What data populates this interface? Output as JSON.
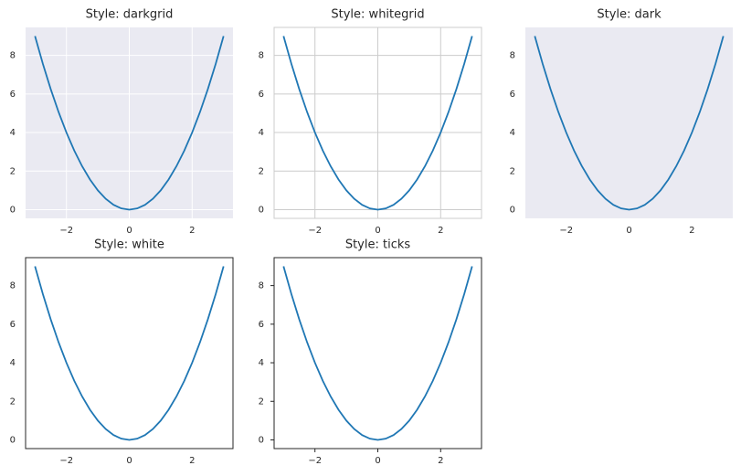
{
  "chart_data": [
    {
      "type": "line",
      "title": "Style: darkgrid",
      "x": [
        -3,
        -2.75,
        -2.5,
        -2.25,
        -2,
        -1.75,
        -1.5,
        -1.25,
        -1,
        -0.75,
        -0.5,
        -0.25,
        0,
        0.25,
        0.5,
        0.75,
        1,
        1.25,
        1.5,
        1.75,
        2,
        2.25,
        2.5,
        2.75,
        3
      ],
      "values": [
        9,
        7.5625,
        6.25,
        5.0625,
        4,
        3.0625,
        2.25,
        1.5625,
        1,
        0.5625,
        0.25,
        0.0625,
        0,
        0.0625,
        0.25,
        0.5625,
        1,
        1.5625,
        2.25,
        3.0625,
        4,
        5.0625,
        6.25,
        7.5625,
        9
      ],
      "color": "#1f77b4",
      "xlim": [
        -3.3,
        3.3
      ],
      "ylim": [
        -0.45,
        9.45
      ],
      "xticks": [
        {
          "value": -2,
          "label": "−2"
        },
        0,
        2
      ],
      "yticks": [
        0,
        2,
        4,
        6,
        8
      ],
      "background": "#eaeaf2",
      "grid": true,
      "grid_color": "#ffffff"
    },
    {
      "type": "line",
      "title": "Style: whitegrid",
      "x": [
        -3,
        -2.75,
        -2.5,
        -2.25,
        -2,
        -1.75,
        -1.5,
        -1.25,
        -1,
        -0.75,
        -0.5,
        -0.25,
        0,
        0.25,
        0.5,
        0.75,
        1,
        1.25,
        1.5,
        1.75,
        2,
        2.25,
        2.5,
        2.75,
        3
      ],
      "values": [
        9,
        7.5625,
        6.25,
        5.0625,
        4,
        3.0625,
        2.25,
        1.5625,
        1,
        0.5625,
        0.25,
        0.0625,
        0,
        0.0625,
        0.25,
        0.5625,
        1,
        1.5625,
        2.25,
        3.0625,
        4,
        5.0625,
        6.25,
        7.5625,
        9
      ],
      "color": "#1f77b4",
      "xlim": [
        -3.3,
        3.3
      ],
      "ylim": [
        -0.45,
        9.45
      ],
      "xticks": [
        {
          "value": -2,
          "label": "−2"
        },
        0,
        2
      ],
      "yticks": [
        0,
        2,
        4,
        6,
        8
      ],
      "background": "#ffffff",
      "grid": true,
      "grid_color": "#cccccc",
      "spine_color": "#cccccc"
    },
    {
      "type": "line",
      "title": "Style: dark",
      "x": [
        -3,
        -2.75,
        -2.5,
        -2.25,
        -2,
        -1.75,
        -1.5,
        -1.25,
        -1,
        -0.75,
        -0.5,
        -0.25,
        0,
        0.25,
        0.5,
        0.75,
        1,
        1.25,
        1.5,
        1.75,
        2,
        2.25,
        2.5,
        2.75,
        3
      ],
      "values": [
        9,
        7.5625,
        6.25,
        5.0625,
        4,
        3.0625,
        2.25,
        1.5625,
        1,
        0.5625,
        0.25,
        0.0625,
        0,
        0.0625,
        0.25,
        0.5625,
        1,
        1.5625,
        2.25,
        3.0625,
        4,
        5.0625,
        6.25,
        7.5625,
        9
      ],
      "color": "#1f77b4",
      "xlim": [
        -3.3,
        3.3
      ],
      "ylim": [
        -0.45,
        9.45
      ],
      "xticks": [
        {
          "value": -2,
          "label": "−2"
        },
        0,
        2
      ],
      "yticks": [
        0,
        2,
        4,
        6,
        8
      ],
      "background": "#eaeaf2",
      "grid": false
    },
    {
      "type": "line",
      "title": "Style: white",
      "x": [
        -3,
        -2.75,
        -2.5,
        -2.25,
        -2,
        -1.75,
        -1.5,
        -1.25,
        -1,
        -0.75,
        -0.5,
        -0.25,
        0,
        0.25,
        0.5,
        0.75,
        1,
        1.25,
        1.5,
        1.75,
        2,
        2.25,
        2.5,
        2.75,
        3
      ],
      "values": [
        9,
        7.5625,
        6.25,
        5.0625,
        4,
        3.0625,
        2.25,
        1.5625,
        1,
        0.5625,
        0.25,
        0.0625,
        0,
        0.0625,
        0.25,
        0.5625,
        1,
        1.5625,
        2.25,
        3.0625,
        4,
        5.0625,
        6.25,
        7.5625,
        9
      ],
      "color": "#1f77b4",
      "xlim": [
        -3.3,
        3.3
      ],
      "ylim": [
        -0.45,
        9.45
      ],
      "xticks": [
        {
          "value": -2,
          "label": "−2"
        },
        0,
        2
      ],
      "yticks": [
        0,
        2,
        4,
        6,
        8
      ],
      "background": "#ffffff",
      "grid": false,
      "spine_color": "#262626"
    },
    {
      "type": "line",
      "title": "Style: ticks",
      "x": [
        -3,
        -2.75,
        -2.5,
        -2.25,
        -2,
        -1.75,
        -1.5,
        -1.25,
        -1,
        -0.75,
        -0.5,
        -0.25,
        0,
        0.25,
        0.5,
        0.75,
        1,
        1.25,
        1.5,
        1.75,
        2,
        2.25,
        2.5,
        2.75,
        3
      ],
      "values": [
        9,
        7.5625,
        6.25,
        5.0625,
        4,
        3.0625,
        2.25,
        1.5625,
        1,
        0.5625,
        0.25,
        0.0625,
        0,
        0.0625,
        0.25,
        0.5625,
        1,
        1.5625,
        2.25,
        3.0625,
        4,
        5.0625,
        6.25,
        7.5625,
        9
      ],
      "color": "#1f77b4",
      "xlim": [
        -3.3,
        3.3
      ],
      "ylim": [
        -0.45,
        9.45
      ],
      "xticks": [
        {
          "value": -2,
          "label": "−2"
        },
        0,
        2
      ],
      "yticks": [
        0,
        2,
        4,
        6,
        8
      ],
      "background": "#ffffff",
      "grid": false,
      "spine_color": "#262626",
      "tick_marks": true
    }
  ]
}
